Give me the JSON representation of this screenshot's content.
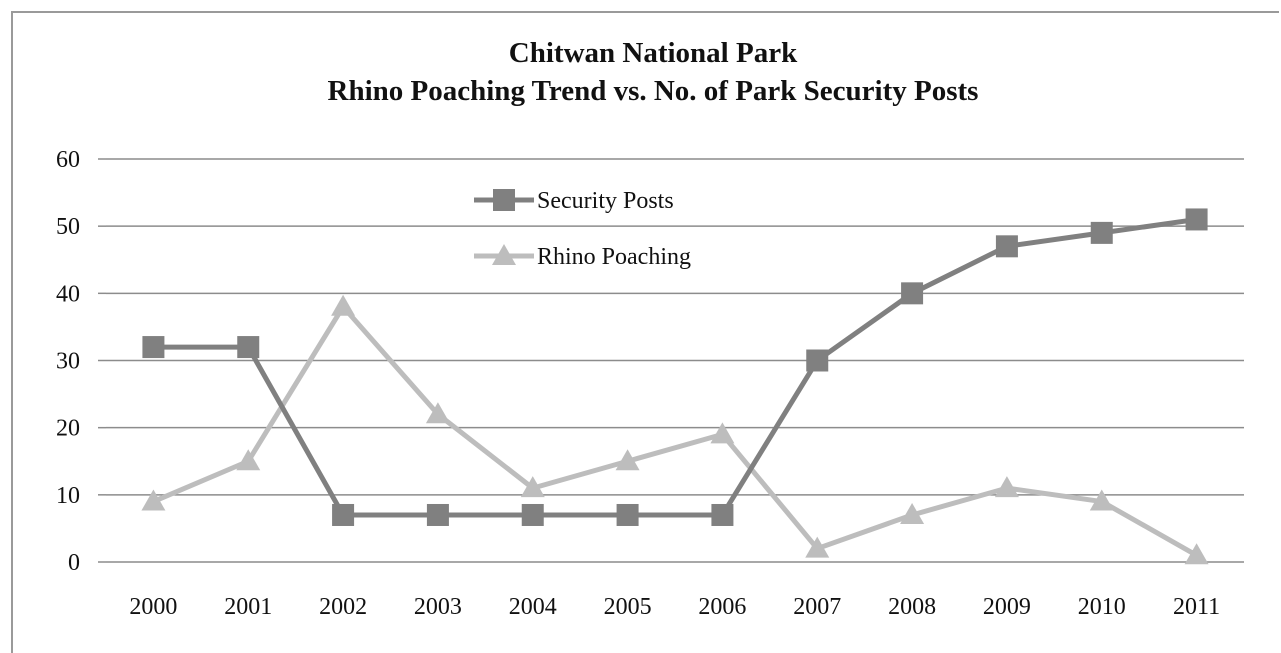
{
  "chart_data": {
    "type": "line",
    "title": [
      "Chitwan National Park",
      "Rhino Poaching Trend vs. No. of Park Security Posts"
    ],
    "xlabel": "",
    "ylabel": "",
    "categories": [
      "2000",
      "2001",
      "2002",
      "2003",
      "2004",
      "2005",
      "2006",
      "2007",
      "2008",
      "2009",
      "2010",
      "2011"
    ],
    "ylim": [
      0,
      60
    ],
    "yticks": [
      "0",
      "10",
      "20",
      "30",
      "40",
      "50",
      "60"
    ],
    "grid": true,
    "legend_position": "top-center",
    "series": [
      {
        "name": "Security Posts",
        "marker": "square",
        "color": "#808080",
        "values": [
          32,
          32,
          7,
          7,
          7,
          7,
          7,
          30,
          40,
          47,
          49,
          51
        ]
      },
      {
        "name": "Rhino Poaching",
        "marker": "triangle",
        "color": "#bdbdbd",
        "values": [
          9,
          15,
          38,
          22,
          11,
          15,
          19,
          2,
          7,
          11,
          9,
          1
        ]
      }
    ]
  }
}
